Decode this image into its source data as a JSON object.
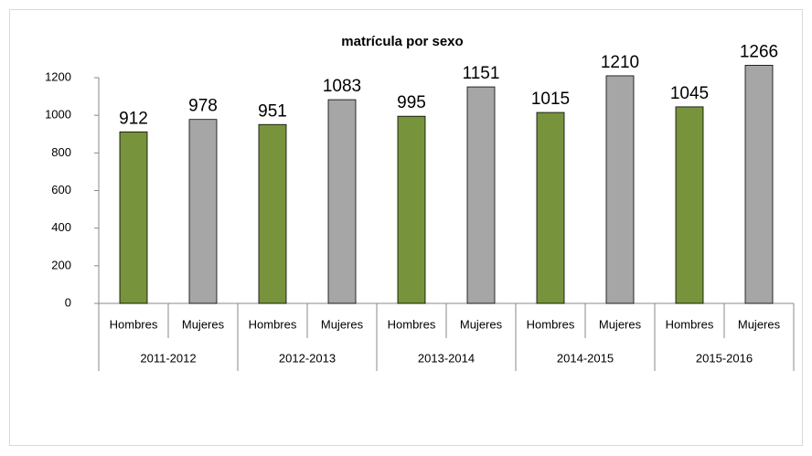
{
  "chart_data": {
    "type": "bar",
    "title": "matrícula por sexo",
    "categories": [
      "2011-2012",
      "2012-2013",
      "2013-2014",
      "2014-2015",
      "2015-2016"
    ],
    "series": [
      {
        "name": "Hombres",
        "color": "#77933c",
        "values": [
          912,
          951,
          995,
          1015,
          1045
        ]
      },
      {
        "name": "Mujeres",
        "color": "#a6a6a6",
        "values": [
          978,
          1083,
          1151,
          1210,
          1266
        ]
      }
    ],
    "ylim": [
      0,
      1200
    ],
    "yticks": [
      0,
      200,
      400,
      600,
      800,
      1000,
      1200
    ],
    "grid": false
  }
}
